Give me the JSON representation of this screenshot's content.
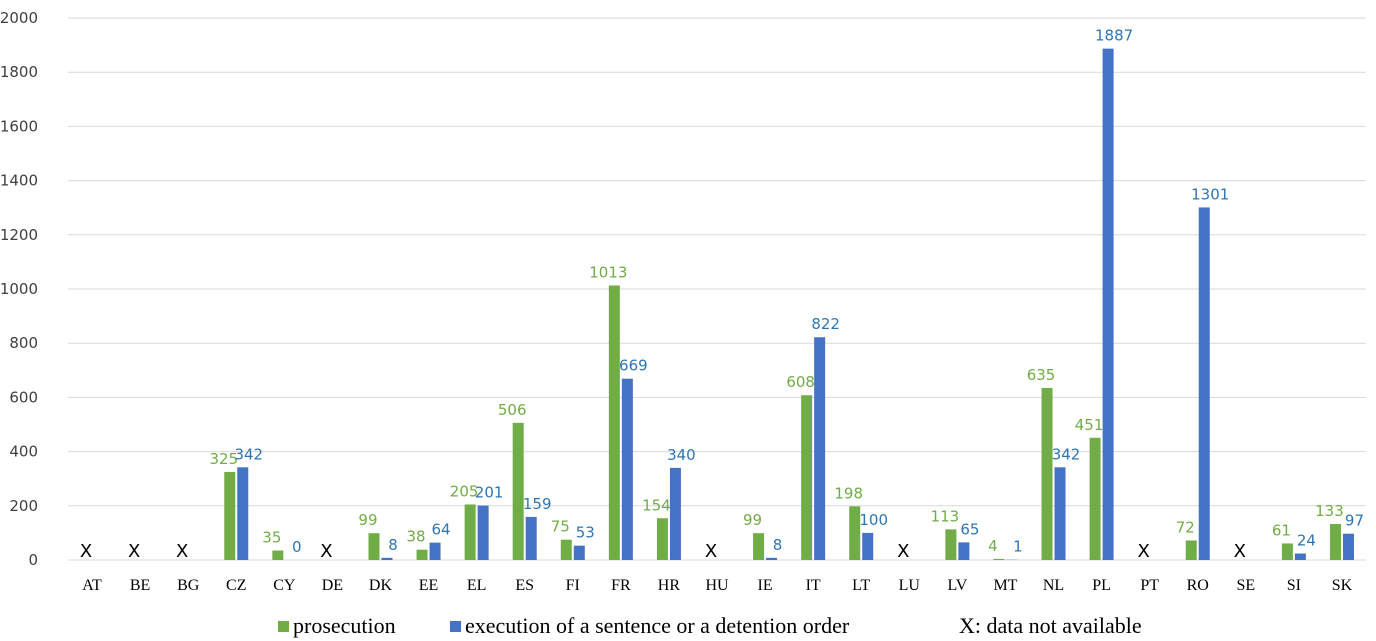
{
  "chart_data": {
    "type": "bar",
    "categories": [
      "AT",
      "BE",
      "BG",
      "CZ",
      "CY",
      "DE",
      "DK",
      "EE",
      "EL",
      "ES",
      "FI",
      "FR",
      "HR",
      "HU",
      "IE",
      "IT",
      "LT",
      "LU",
      "LV",
      "MT",
      "NL",
      "PL",
      "PT",
      "RO",
      "SE",
      "SI",
      "SK"
    ],
    "series": [
      {
        "name": "prosecution",
        "color": "#70ad47",
        "label_color": "#70ad47",
        "values": [
          null,
          null,
          null,
          325,
          35,
          null,
          99,
          38,
          205,
          506,
          75,
          1013,
          154,
          null,
          99,
          608,
          198,
          null,
          113,
          4,
          635,
          451,
          null,
          72,
          null,
          61,
          133
        ]
      },
      {
        "name": "execution of a sentence or a detention order",
        "color": "#4472c4",
        "label_color": "#2e75b6",
        "values": [
          null,
          null,
          null,
          342,
          0,
          null,
          8,
          64,
          201,
          159,
          53,
          669,
          340,
          null,
          8,
          822,
          100,
          null,
          65,
          1,
          342,
          1887,
          null,
          1301,
          null,
          24,
          97
        ]
      }
    ],
    "not_available_marker": "X",
    "not_available_note": "X: data not available",
    "ylim": [
      0,
      2000
    ],
    "yticks": [
      0,
      200,
      400,
      600,
      800,
      1000,
      1200,
      1400,
      1600,
      1800,
      2000
    ],
    "grid": true,
    "legend_position": "bottom"
  }
}
